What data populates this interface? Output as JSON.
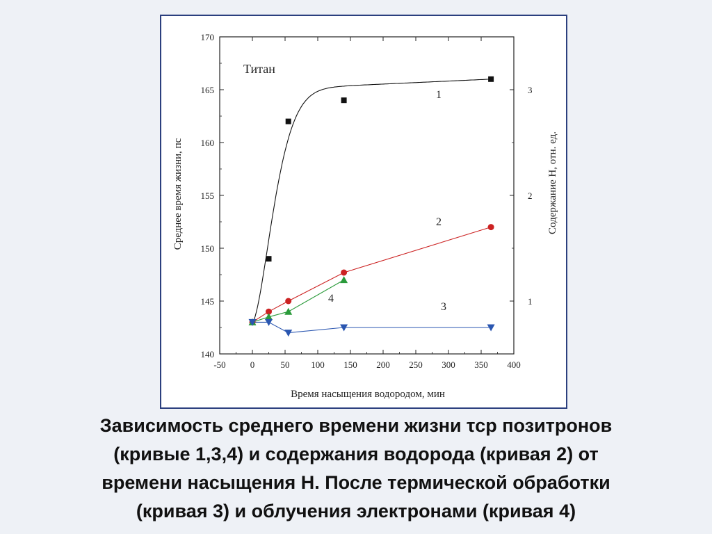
{
  "chart_data": {
    "type": "line",
    "title": "Титан",
    "xlabel": "Время насыщения водородом, мин",
    "ylabel": "Среднее время жизни, пс",
    "y2label": "Содержание Н, отн. ед.",
    "xlim": [
      -50,
      400
    ],
    "ylim": [
      140,
      170
    ],
    "x_ticks": [
      "-50",
      "0",
      "50",
      "100",
      "150",
      "200",
      "250",
      "300",
      "350",
      "400"
    ],
    "y_ticks": [
      "140",
      "145",
      "150",
      "155",
      "160",
      "165",
      "170"
    ],
    "y2_ticks": [
      "1",
      "2",
      "3"
    ],
    "series": [
      {
        "name": "1",
        "marker": "square",
        "color": "#111111",
        "x": [
          0,
          25,
          55,
          140,
          365
        ],
        "y": [
          143,
          149,
          162,
          164,
          166
        ]
      },
      {
        "name": "2",
        "marker": "circle",
        "color": "#cc2222",
        "x": [
          0,
          25,
          55,
          140,
          365
        ],
        "y": [
          143,
          144,
          145,
          147.7,
          152
        ]
      },
      {
        "name": "4",
        "marker": "triangle-up",
        "color": "#2a9a3a",
        "x": [
          0,
          25,
          55,
          140
        ],
        "y": [
          143,
          143.5,
          144,
          147
        ]
      },
      {
        "name": "3",
        "marker": "triangle-down",
        "color": "#2a56b0",
        "x": [
          0,
          25,
          55,
          140,
          365
        ],
        "y": [
          143,
          143,
          142,
          142.5,
          142.5
        ]
      }
    ]
  },
  "caption": {
    "lines": [
      "Зависимость среднего времени жизни τср позитронов",
      "(кривые 1,3,4) и содержания водорода (кривая 2) от",
      "времени насыщения Н. После термической обработки",
      "(кривая 3) и облучения электронами (кривая 4)"
    ]
  }
}
